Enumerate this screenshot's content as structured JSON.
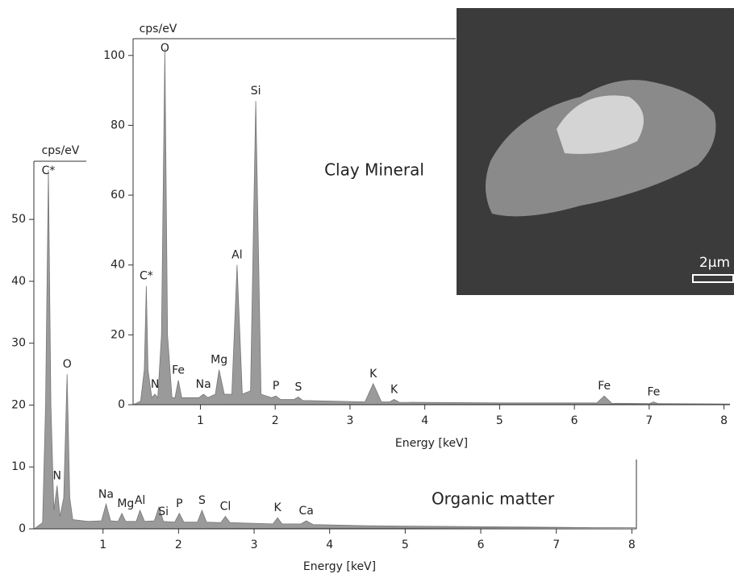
{
  "chart_data": [
    {
      "type": "area",
      "annotation": "Organic matter",
      "x_label": "Energy [keV]",
      "y_label": "cps/eV",
      "color": "#9a9a9a",
      "x": [
        0.09,
        0.2,
        0.24,
        0.277,
        0.31,
        0.35,
        0.392,
        0.43,
        0.48,
        0.525,
        0.56,
        0.6,
        0.8,
        0.98,
        1.04,
        1.1,
        1.2,
        1.25,
        1.3,
        1.44,
        1.49,
        1.55,
        1.68,
        1.74,
        1.8,
        1.95,
        2.01,
        2.07,
        2.25,
        2.31,
        2.37,
        2.56,
        2.62,
        2.68,
        3.25,
        3.31,
        3.37,
        3.62,
        3.69,
        3.78,
        4.5,
        5.5,
        6.5,
        7.5,
        8.05
      ],
      "values": [
        0,
        1,
        20,
        58,
        20,
        3,
        7,
        2,
        5,
        25,
        5,
        1.5,
        1.2,
        1.3,
        4,
        1.3,
        1.2,
        2.5,
        1.2,
        1.2,
        3,
        1.2,
        1.3,
        3.5,
        1.2,
        1.1,
        2.5,
        1.1,
        1.1,
        3,
        1.1,
        1,
        2,
        1,
        0.8,
        1.8,
        0.8,
        0.8,
        1.3,
        0.7,
        0.5,
        0.4,
        0.3,
        0.2,
        0.2
      ],
      "xlim": [
        0.085,
        8.06
      ],
      "ylim": [
        0,
        59.4
      ],
      "xticks": [
        1,
        2,
        3,
        4,
        5,
        6,
        7,
        8
      ],
      "yticks": [
        0,
        10,
        20,
        30,
        40,
        50
      ],
      "peak_labels": [
        {
          "text": "C*",
          "x": 0.277
        },
        {
          "text": "N",
          "x": 0.392
        },
        {
          "text": "O",
          "x": 0.525
        },
        {
          "text": "Na",
          "x": 1.04
        },
        {
          "text": "Mg",
          "x": 1.3
        },
        {
          "text": "Al",
          "x": 1.49
        },
        {
          "text": "Si",
          "x": 1.8
        },
        {
          "text": "P",
          "x": 2.01
        },
        {
          "text": "S",
          "x": 2.31
        },
        {
          "text": "Cl",
          "x": 2.62
        },
        {
          "text": "K",
          "x": 3.31
        },
        {
          "text": "Ca",
          "x": 3.69
        }
      ]
    },
    {
      "type": "area",
      "annotation": "Clay Mineral",
      "x_label": "Energy [keV]",
      "y_label": "cps/eV",
      "color": "#9a9a9a",
      "x": [
        0.1,
        0.2,
        0.25,
        0.277,
        0.3,
        0.35,
        0.392,
        0.43,
        0.48,
        0.525,
        0.56,
        0.62,
        0.66,
        0.705,
        0.75,
        0.98,
        1.04,
        1.1,
        1.2,
        1.25,
        1.32,
        1.42,
        1.49,
        1.56,
        1.67,
        1.74,
        1.81,
        1.95,
        2.01,
        2.07,
        2.25,
        2.31,
        2.37,
        3.2,
        3.31,
        3.42,
        3.53,
        3.59,
        3.66,
        5,
        6.3,
        6.4,
        6.5,
        7.0,
        7.06,
        7.12,
        8.08
      ],
      "values": [
        0,
        1,
        10,
        34,
        10,
        2,
        3,
        2,
        20,
        102,
        20,
        2,
        2,
        7,
        2,
        2,
        3,
        2,
        3,
        10,
        3,
        3,
        40,
        3,
        4,
        87,
        3,
        2,
        2.5,
        1.5,
        1.5,
        2.2,
        1.2,
        0.8,
        6,
        0.8,
        0.8,
        1.5,
        0.7,
        0.5,
        0.5,
        2.5,
        0.4,
        0.3,
        0.8,
        0.3,
        0.2
      ],
      "xlim": [
        0.1,
        8.08
      ],
      "ylim": [
        0,
        104.8
      ],
      "xticks": [
        1,
        2,
        3,
        4,
        5,
        6,
        7,
        8
      ],
      "yticks": [
        0,
        20,
        40,
        60,
        80,
        100
      ],
      "peak_labels": [
        {
          "text": "C*",
          "x": 0.277
        },
        {
          "text": "N",
          "x": 0.392
        },
        {
          "text": "O",
          "x": 0.525
        },
        {
          "text": "Fe",
          "x": 0.705
        },
        {
          "text": "Na",
          "x": 1.04
        },
        {
          "text": "Mg",
          "x": 1.25
        },
        {
          "text": "Al",
          "x": 1.49
        },
        {
          "text": "Si",
          "x": 1.74
        },
        {
          "text": "P",
          "x": 2.01
        },
        {
          "text": "S",
          "x": 2.31
        },
        {
          "text": "K",
          "x": 3.31
        },
        {
          "text": "K",
          "x": 3.59
        },
        {
          "text": "Fe",
          "x": 6.4
        },
        {
          "text": "Fe",
          "x": 7.06
        }
      ]
    }
  ],
  "inset_image": {
    "scale_bar": "2µm"
  }
}
